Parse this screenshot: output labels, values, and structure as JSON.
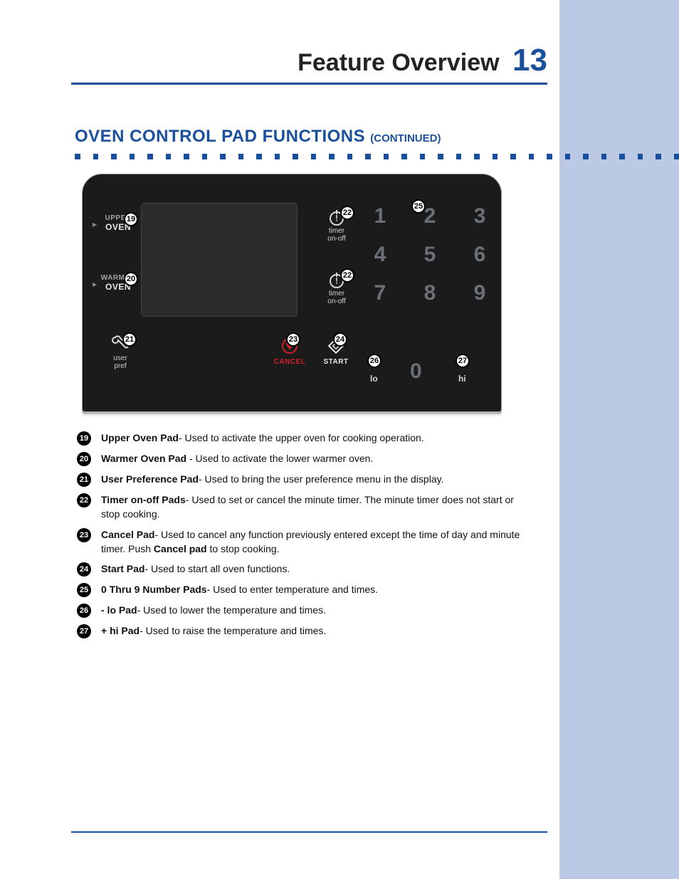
{
  "colors": {
    "accent": "#1a4f9c",
    "cancel": "#d1202a",
    "panel_bg": "#1b1b1b",
    "num_gray": "#6b7076",
    "sidebar": "#bcc9e4"
  },
  "header": {
    "title": "Feature Overview",
    "page": "13"
  },
  "section": {
    "title": "OVEN CONTROL PAD FUNCTIONS ",
    "sub": "(CONTINUED)"
  },
  "panel": {
    "upper": {
      "line1": "UPPER",
      "line2": "OVEN"
    },
    "warmer": {
      "line1": "WARMER",
      "line2": "OVEN"
    },
    "userpref": {
      "line1": "user",
      "line2": "pref"
    },
    "timer": {
      "line1": "timer",
      "line2": "on-off"
    },
    "cancel": "CANCEL",
    "start": "START",
    "lo": "lo",
    "hi": "hi",
    "keys": {
      "r1": [
        "1",
        "2",
        "3"
      ],
      "r2": [
        "4",
        "5",
        "6"
      ],
      "r3": [
        "7",
        "8",
        "9"
      ],
      "zero": "0"
    },
    "callouts": {
      "upper": "19",
      "warmer": "20",
      "userpref": "21",
      "timer1": "22",
      "timer2": "22",
      "cancel": "23",
      "start": "24",
      "numpad": "25",
      "lo": "26",
      "hi": "27"
    }
  },
  "legend": [
    {
      "n": "19",
      "term": "Upper Oven Pad",
      "desc": "- Used to activate the upper oven for cooking operation."
    },
    {
      "n": "20",
      "term": "Warmer Oven Pad",
      "desc": " - Used to activate the lower warmer oven."
    },
    {
      "n": "21",
      "term": "User Preference Pad",
      "desc": "- Used to bring the user preference menu in the display."
    },
    {
      "n": "22",
      "term": "Timer on-off Pads",
      "desc": "- Used to set or cancel the minute timer. The minute timer does not start or stop cooking."
    },
    {
      "n": "23",
      "term": "Cancel Pad",
      "desc_pre": "- Used to cancel any function previously entered except the time of day and minute timer. Push ",
      "bold": "Cancel pad",
      "desc_post": " to stop cooking."
    },
    {
      "n": "24",
      "term": "Start Pad",
      "desc": "- Used to start all oven functions."
    },
    {
      "n": "25",
      "term": "0 Thru 9 Number Pads",
      "desc": "- Used to enter temperature and times."
    },
    {
      "n": "26",
      "term": "- lo Pad",
      "desc": "- Used to lower the temperature and times."
    },
    {
      "n": "27",
      "term": "+ hi Pad",
      "desc": "- Used to raise the temperature and times."
    }
  ]
}
